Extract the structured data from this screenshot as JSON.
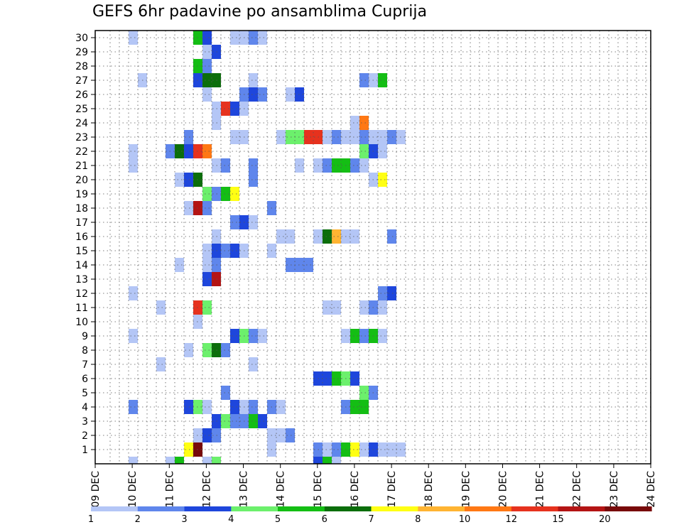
{
  "chart_data": {
    "type": "heatmap",
    "title": "GEFS 6hr padavine po ansamblima Cuprija",
    "xlabel": "",
    "ylabel": "",
    "x_tick_labels": [
      "09 DEC",
      "10 DEC",
      "11 DEC",
      "12 DEC",
      "13 DEC",
      "14 DEC",
      "15 DEC",
      "16 DEC",
      "17 DEC",
      "18 DEC",
      "19 DEC",
      "20 DEC",
      "21 DEC",
      "22 DEC",
      "23 DEC",
      "24 DEC"
    ],
    "y_tick_labels": [
      "1",
      "2",
      "3",
      "4",
      "5",
      "6",
      "7",
      "8",
      "9",
      "10",
      "11",
      "12",
      "13",
      "14",
      "15",
      "16",
      "17",
      "18",
      "19",
      "20",
      "21",
      "22",
      "23",
      "24",
      "25",
      "26",
      "27",
      "28",
      "29",
      "30"
    ],
    "xlim": [
      0,
      60
    ],
    "ylim": [
      0,
      30
    ],
    "grid": true,
    "legend": {
      "placement": "bottom",
      "levels": [
        "1",
        "2",
        "3",
        "4",
        "5",
        "6",
        "7",
        "8",
        "10",
        "12",
        "15",
        "20"
      ],
      "colors": [
        "#b4c6f6",
        "#5f86ec",
        "#1e46dc",
        "#6cf06c",
        "#14be14",
        "#0b6e0b",
        "#ffff14",
        "#ffb432",
        "#ff7814",
        "#e6321e",
        "#b41414",
        "#780a0a"
      ]
    },
    "cells": [
      {
        "m": 30,
        "c": [
          [
            3,
            0
          ],
          [
            10,
            4
          ],
          [
            11,
            2
          ],
          [
            14,
            0
          ],
          [
            15,
            0
          ],
          [
            16,
            1
          ],
          [
            17,
            0
          ]
        ]
      },
      {
        "m": 29,
        "c": [
          [
            11,
            0
          ],
          [
            12,
            2
          ]
        ]
      },
      {
        "m": 28,
        "c": [
          [
            10,
            4
          ],
          [
            11,
            1
          ]
        ]
      },
      {
        "m": 27,
        "c": [
          [
            4,
            0
          ],
          [
            10,
            2
          ],
          [
            11,
            5
          ],
          [
            12,
            5
          ],
          [
            16,
            0
          ],
          [
            28,
            1
          ],
          [
            29,
            0
          ],
          [
            30,
            4
          ]
        ]
      },
      {
        "m": 26,
        "c": [
          [
            11,
            0
          ],
          [
            15,
            1
          ],
          [
            16,
            2
          ],
          [
            17,
            1
          ],
          [
            20,
            0
          ],
          [
            21,
            2
          ]
        ]
      },
      {
        "m": 25,
        "c": [
          [
            12,
            0
          ],
          [
            13,
            9
          ],
          [
            14,
            2
          ],
          [
            15,
            0
          ]
        ]
      },
      {
        "m": 24,
        "c": [
          [
            12,
            0
          ],
          [
            27,
            0
          ],
          [
            28,
            8
          ]
        ]
      },
      {
        "m": 23,
        "c": [
          [
            9,
            1
          ],
          [
            14,
            0
          ],
          [
            15,
            0
          ],
          [
            19,
            0
          ],
          [
            20,
            3
          ],
          [
            21,
            3
          ],
          [
            22,
            9
          ],
          [
            23,
            9
          ],
          [
            24,
            0
          ],
          [
            25,
            1
          ],
          [
            26,
            0
          ],
          [
            27,
            0
          ],
          [
            28,
            1
          ],
          [
            29,
            0
          ],
          [
            29,
            0
          ],
          [
            30,
            0
          ],
          [
            31,
            1
          ],
          [
            32,
            0
          ]
        ]
      },
      {
        "m": 22,
        "c": [
          [
            3,
            0
          ],
          [
            7,
            1
          ],
          [
            8,
            5
          ],
          [
            9,
            2
          ],
          [
            10,
            9
          ],
          [
            11,
            8
          ],
          [
            28,
            3
          ],
          [
            29,
            2
          ],
          [
            30,
            0
          ]
        ]
      },
      {
        "m": 21,
        "c": [
          [
            3,
            0
          ],
          [
            12,
            0
          ],
          [
            13,
            1
          ],
          [
            16,
            1
          ],
          [
            21,
            0
          ],
          [
            23,
            0
          ],
          [
            24,
            1
          ],
          [
            25,
            4
          ],
          [
            26,
            4
          ],
          [
            27,
            1
          ],
          [
            28,
            0
          ]
        ]
      },
      {
        "m": 20,
        "c": [
          [
            8,
            0
          ],
          [
            9,
            2
          ],
          [
            10,
            5
          ],
          [
            16,
            1
          ],
          [
            29,
            0
          ],
          [
            30,
            6
          ]
        ]
      },
      {
        "m": 19,
        "c": [
          [
            11,
            3
          ],
          [
            12,
            1
          ],
          [
            13,
            4
          ],
          [
            14,
            6
          ]
        ]
      },
      {
        "m": 18,
        "c": [
          [
            9,
            0
          ],
          [
            10,
            10
          ],
          [
            11,
            1
          ],
          [
            18,
            1
          ]
        ]
      },
      {
        "m": 17,
        "c": [
          [
            14,
            1
          ],
          [
            15,
            2
          ],
          [
            16,
            0
          ]
        ]
      },
      {
        "m": 16,
        "c": [
          [
            12,
            0
          ],
          [
            19,
            0
          ],
          [
            20,
            0
          ],
          [
            23,
            0
          ],
          [
            24,
            5
          ],
          [
            25,
            7
          ],
          [
            26,
            0
          ],
          [
            27,
            0
          ],
          [
            31,
            1
          ]
        ]
      },
      {
        "m": 15,
        "c": [
          [
            11,
            0
          ],
          [
            12,
            2
          ],
          [
            13,
            1
          ],
          [
            14,
            2
          ],
          [
            15,
            0
          ],
          [
            18,
            0
          ]
        ]
      },
      {
        "m": 14,
        "c": [
          [
            8,
            0
          ],
          [
            11,
            0
          ],
          [
            12,
            1
          ],
          [
            20,
            1
          ],
          [
            21,
            1
          ],
          [
            22,
            1
          ]
        ]
      },
      {
        "m": 13,
        "c": [
          [
            11,
            2
          ],
          [
            12,
            10
          ]
        ]
      },
      {
        "m": 12,
        "c": [
          [
            3,
            0
          ],
          [
            30,
            1
          ],
          [
            31,
            2
          ]
        ]
      },
      {
        "m": 11,
        "c": [
          [
            6,
            0
          ],
          [
            10,
            9
          ],
          [
            11,
            3
          ],
          [
            24,
            0
          ],
          [
            25,
            0
          ],
          [
            28,
            0
          ],
          [
            29,
            1
          ],
          [
            30,
            0
          ]
        ]
      },
      {
        "m": 10,
        "c": [
          [
            10,
            0
          ]
        ]
      },
      {
        "m": 9,
        "c": [
          [
            3,
            0
          ],
          [
            14,
            2
          ],
          [
            15,
            3
          ],
          [
            16,
            1
          ],
          [
            17,
            0
          ],
          [
            26,
            0
          ],
          [
            27,
            4
          ],
          [
            28,
            1
          ],
          [
            29,
            4
          ],
          [
            30,
            0
          ]
        ]
      },
      {
        "m": 8,
        "c": [
          [
            9,
            0
          ],
          [
            11,
            3
          ],
          [
            12,
            5
          ],
          [
            13,
            1
          ]
        ]
      },
      {
        "m": 7,
        "c": [
          [
            6,
            0
          ],
          [
            16,
            0
          ]
        ]
      },
      {
        "m": 6,
        "c": [
          [
            23,
            2
          ],
          [
            24,
            2
          ],
          [
            25,
            4
          ],
          [
            26,
            3
          ],
          [
            27,
            2
          ]
        ]
      },
      {
        "m": 5,
        "c": [
          [
            13,
            1
          ],
          [
            28,
            3
          ],
          [
            29,
            1
          ]
        ]
      },
      {
        "m": 4,
        "c": [
          [
            3,
            1
          ],
          [
            9,
            2
          ],
          [
            10,
            3
          ],
          [
            11,
            0
          ],
          [
            14,
            2
          ],
          [
            15,
            0
          ],
          [
            16,
            1
          ],
          [
            18,
            1
          ],
          [
            19,
            0
          ],
          [
            26,
            1
          ],
          [
            27,
            4
          ],
          [
            28,
            4
          ]
        ]
      },
      {
        "m": 3,
        "c": [
          [
            12,
            2
          ],
          [
            13,
            3
          ],
          [
            14,
            1
          ],
          [
            15,
            1
          ],
          [
            16,
            4
          ],
          [
            17,
            2
          ]
        ]
      },
      {
        "m": 2,
        "c": [
          [
            10,
            0
          ],
          [
            11,
            2
          ],
          [
            12,
            1
          ],
          [
            18,
            0
          ],
          [
            19,
            0
          ],
          [
            20,
            1
          ]
        ]
      },
      {
        "m": 1,
        "c": [
          [
            9,
            6
          ],
          [
            10,
            11
          ],
          [
            18,
            0
          ],
          [
            23,
            1
          ],
          [
            24,
            0
          ],
          [
            25,
            1
          ],
          [
            26,
            4
          ],
          [
            27,
            6
          ],
          [
            28,
            0
          ],
          [
            29,
            2
          ],
          [
            30,
            0
          ],
          [
            31,
            0
          ],
          [
            32,
            0
          ]
        ]
      },
      {
        "m": 0,
        "c": [
          [
            3,
            0
          ],
          [
            7,
            0
          ],
          [
            8,
            4
          ],
          [
            11,
            0
          ],
          [
            12,
            3
          ],
          [
            23,
            2
          ],
          [
            24,
            4
          ],
          [
            25,
            0
          ]
        ]
      }
    ]
  }
}
